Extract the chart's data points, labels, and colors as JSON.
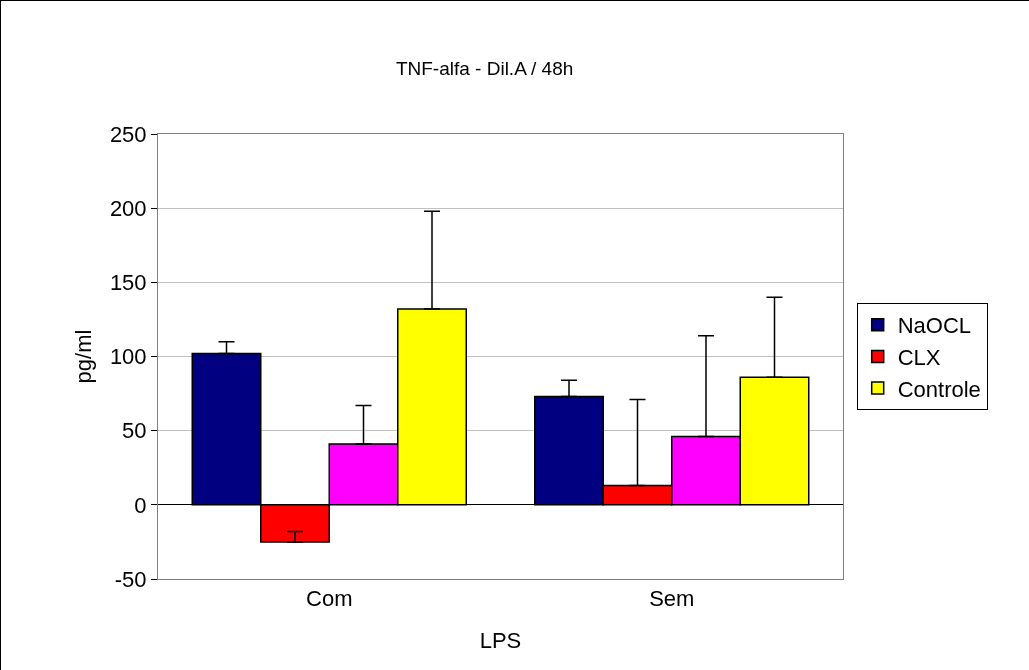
{
  "chart_data": {
    "type": "bar",
    "title": "TNF-alfa - Dil.A / 48h",
    "xlabel": "LPS",
    "ylabel": "pg/ml",
    "categories": [
      "Com",
      "Sem"
    ],
    "series": [
      {
        "name": "NaOCL",
        "color": "#000080",
        "values": [
          102,
          73
        ],
        "errors": [
          [
            102,
            110
          ],
          [
            73,
            84
          ]
        ]
      },
      {
        "name": "CLX",
        "color": "#ff0000",
        "values": [
          -25,
          13
        ],
        "errors": [
          [
            -25,
            -18
          ],
          [
            13,
            71
          ]
        ]
      },
      {
        "color": "#ff00ff",
        "values": [
          41,
          46
        ],
        "errors": [
          [
            41,
            67
          ],
          [
            46,
            114
          ]
        ]
      },
      {
        "name": "Controle",
        "color": "#ffff00",
        "values": [
          132,
          86
        ],
        "errors": [
          [
            132,
            198
          ],
          [
            86,
            140
          ]
        ]
      }
    ],
    "ylim": [
      -50,
      250
    ],
    "yticks": [
      -50,
      0,
      50,
      100,
      150,
      200,
      250
    ],
    "grid": "y",
    "legend": "right"
  }
}
